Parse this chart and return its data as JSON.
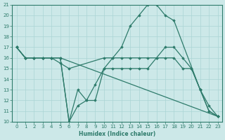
{
  "xlabel": "Humidex (Indice chaleur)",
  "xlim": [
    -0.5,
    23.5
  ],
  "ylim": [
    10,
    21
  ],
  "yticks": [
    10,
    11,
    12,
    13,
    14,
    15,
    16,
    17,
    18,
    19,
    20,
    21
  ],
  "xticks": [
    0,
    1,
    2,
    3,
    4,
    5,
    6,
    7,
    8,
    9,
    10,
    11,
    12,
    13,
    14,
    15,
    16,
    17,
    18,
    19,
    20,
    21,
    22,
    23
  ],
  "xtick_labels": [
    "0",
    "1",
    "2",
    "3",
    "4",
    "5",
    "6",
    "7",
    "8",
    "9",
    "10",
    "11",
    "12",
    "13",
    "14",
    "15",
    "16",
    "17",
    "18",
    "19",
    "20",
    "21",
    "22",
    "23"
  ],
  "bg_color": "#cce8e8",
  "line_color": "#2e7b6b",
  "grid_color": "#aad4d4",
  "line1_x": [
    0,
    1,
    2,
    3,
    4,
    5,
    6,
    7,
    8,
    9,
    10,
    11,
    12,
    13,
    14,
    15,
    16,
    17,
    18,
    21,
    22,
    23
  ],
  "line1_y": [
    17,
    16,
    16,
    16,
    16,
    16,
    10,
    13,
    12,
    12,
    15,
    16,
    17,
    19,
    20,
    21,
    21,
    20,
    19.5,
    13,
    11,
    10.5
  ],
  "line2_x": [
    0,
    1,
    2,
    3,
    4,
    5,
    6,
    7,
    8,
    9,
    10,
    11,
    12,
    13,
    14,
    15,
    16,
    17,
    18,
    19,
    20,
    21,
    22,
    23
  ],
  "line2_y": [
    17,
    16,
    16,
    16,
    16,
    16,
    10,
    11.5,
    12,
    13.5,
    15,
    15,
    15,
    15,
    15,
    15,
    16,
    16,
    16,
    15,
    15,
    13,
    11,
    10.5
  ],
  "line3_x": [
    0,
    1,
    2,
    3,
    4,
    5,
    6,
    10,
    11,
    12,
    13,
    14,
    15,
    16,
    17,
    18,
    19,
    20,
    21,
    22,
    23
  ],
  "line3_y": [
    17,
    16,
    16,
    16,
    16,
    15.5,
    15,
    16,
    16,
    16,
    16,
    16,
    16,
    16,
    17,
    17,
    16,
    15,
    13,
    11.5,
    10.5
  ],
  "line4_x": [
    0,
    1,
    2,
    3,
    4,
    5,
    23
  ],
  "line4_y": [
    17,
    16,
    16,
    16,
    16,
    16,
    10.5
  ]
}
